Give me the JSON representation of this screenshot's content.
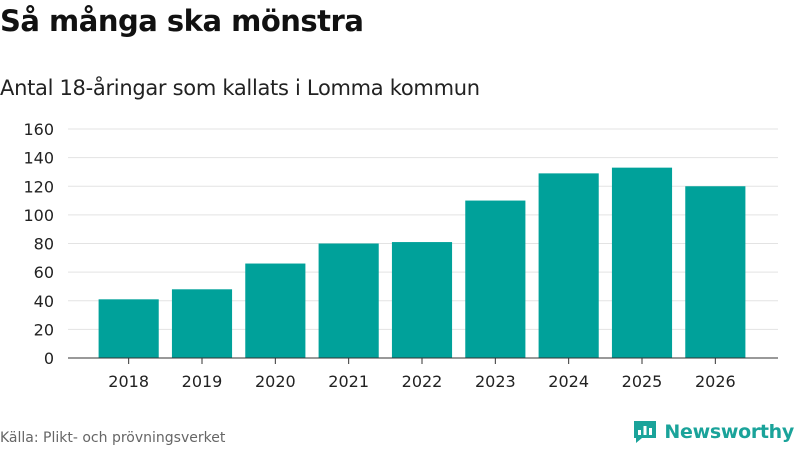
{
  "header": {
    "title": "Så många ska mönstra",
    "subtitle": "Antal 18-åringar som kallats i Lomma kommun"
  },
  "footer": {
    "source": "Källa: Plikt- och prövningsverket",
    "brand": "Newsworthy"
  },
  "colors": {
    "bar": "#00a19a",
    "grid": "#e3e3e3",
    "axis": "#333333",
    "brand": "#1aa39a"
  },
  "chart_data": {
    "type": "bar",
    "title": "Så många ska mönstra",
    "subtitle": "Antal 18-åringar som kallats i Lomma kommun",
    "xlabel": "",
    "ylabel": "",
    "categories": [
      "2018",
      "2019",
      "2020",
      "2021",
      "2022",
      "2023",
      "2024",
      "2025",
      "2026"
    ],
    "values": [
      41,
      48,
      66,
      80,
      81,
      110,
      129,
      133,
      120
    ],
    "ylim": [
      0,
      160
    ],
    "yticks": [
      0,
      20,
      40,
      60,
      80,
      100,
      120,
      140,
      160
    ],
    "grid": true,
    "legend": "none"
  }
}
